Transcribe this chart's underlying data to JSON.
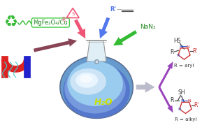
{
  "bg_color": "#ffffff",
  "recycle_color": "#33bb33",
  "catalyst_label": "MgFe₂O₄/Cu",
  "catalyst_text_color": "#228822",
  "catalyst_box_color": "#44cc44",
  "magnet_red": "#dd2222",
  "magnet_blue": "#2222cc",
  "magnet_teal": "#44cccc",
  "flask_neck_color": "#d0e8f0",
  "flask_neck_edge": "#999999",
  "flask_body_outer": "#6699cc",
  "flask_body_light": "#99ccee",
  "flask_body_inner": "#aad4f0",
  "flask_water_dark": "#5577cc",
  "flask_water_mid": "#7799dd",
  "flask_foam_color": "#ddeeff",
  "flask_foam2_color": "#eef6ff",
  "flask_text": "H₂O",
  "flask_text_color": "#ccdd00",
  "arrow_pink": "#ee5577",
  "arrow_blue": "#5577ee",
  "arrow_green": "#33bb33",
  "arrow_dark_red": "#884455",
  "arrow_gray": "#aabbcc",
  "arrow_purple": "#9944bb",
  "NaN3_color": "#228822",
  "NaN3_text": "NaN₃",
  "thiirane_color": "#ee5577",
  "alkyne_color": "#5577ee",
  "alkyne_label": "R'",
  "triazole_ring_color": "#cc3333",
  "triazole_N_color": "#3355cc",
  "triazole_double_color": "#3355cc",
  "label_color": "#333333",
  "R_aryl": "R = aryl",
  "R_alkyl": "R = alkyl"
}
